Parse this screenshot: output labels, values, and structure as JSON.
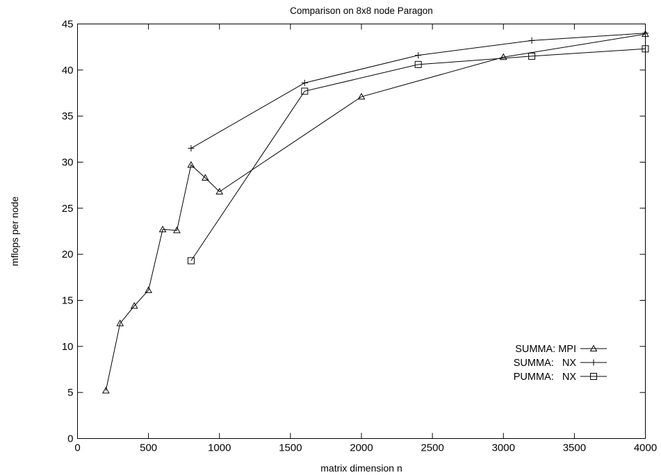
{
  "chart_data": {
    "type": "line",
    "title": "Comparison on 8x8 node Paragon",
    "xlabel": "matrix dimension n",
    "ylabel": "mflops per node",
    "xlim": [
      0,
      4000
    ],
    "ylim": [
      0,
      45
    ],
    "xticks": [
      0,
      500,
      1000,
      1500,
      2000,
      2500,
      3000,
      3500,
      4000
    ],
    "yticks": [
      0,
      5,
      10,
      15,
      20,
      25,
      30,
      35,
      40,
      45
    ],
    "grid": false,
    "legend_position": "bottom-right",
    "series": [
      {
        "name": "SUMMA: MPI",
        "marker": "triangle",
        "points": [
          [
            200,
            5.2
          ],
          [
            300,
            12.5
          ],
          [
            400,
            14.4
          ],
          [
            500,
            16.1
          ],
          [
            600,
            22.7
          ],
          [
            700,
            22.6
          ],
          [
            800,
            29.7
          ],
          [
            900,
            28.3
          ],
          [
            1000,
            26.8
          ],
          [
            2000,
            37.1
          ],
          [
            3000,
            41.4
          ],
          [
            4000,
            43.9
          ]
        ]
      },
      {
        "name": "SUMMA:   NX",
        "marker": "plus",
        "points": [
          [
            800,
            31.5
          ],
          [
            1600,
            38.6
          ],
          [
            2400,
            41.6
          ],
          [
            3200,
            43.2
          ],
          [
            4000,
            44.0
          ]
        ]
      },
      {
        "name": "PUMMA:   NX",
        "marker": "square",
        "points": [
          [
            800,
            19.3
          ],
          [
            1600,
            37.7
          ],
          [
            2400,
            40.6
          ],
          [
            3200,
            41.5
          ],
          [
            4000,
            42.3
          ]
        ]
      }
    ]
  }
}
